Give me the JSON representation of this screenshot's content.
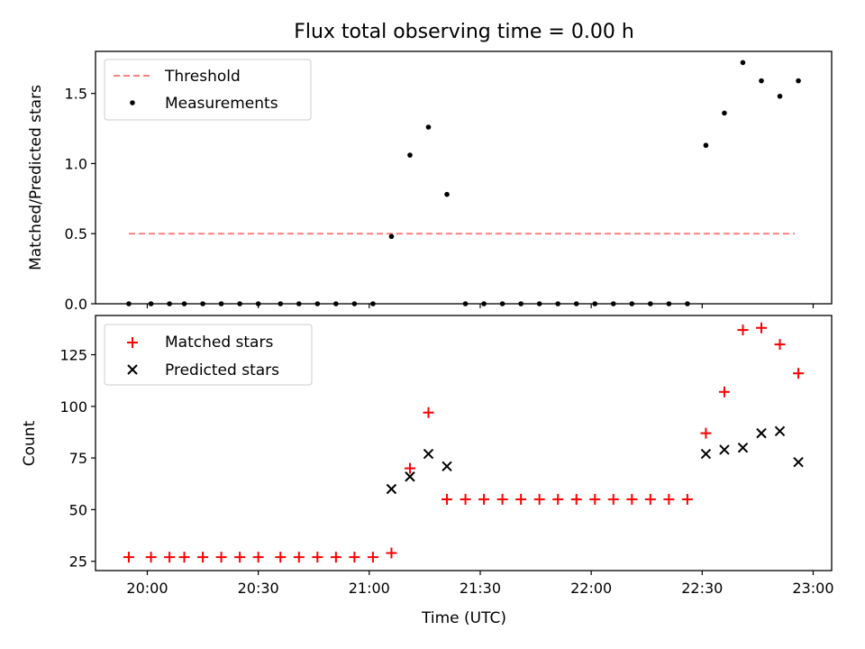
{
  "figure_title": "Flux total observing time = 0.00 h",
  "colors": {
    "threshold": "#ff7f7f",
    "measurement": "#000000",
    "matched": "#ff0000",
    "predicted": "#000000",
    "axes": "#000000"
  },
  "chart_data": [
    {
      "type": "scatter",
      "title": "Flux total observing time = 0.00 h",
      "xlabel": "",
      "ylabel": "Matched/Predicted stars",
      "x_axis_type": "time",
      "xlim": [
        "19:46",
        "23:05"
      ],
      "ylim": [
        0,
        1.8
      ],
      "yticks": [
        0.0,
        0.5,
        1.0,
        1.5
      ],
      "ytick_labels": [
        "0.0",
        "0.5",
        "1.0",
        "1.5"
      ],
      "xticks": [
        "20:00",
        "20:30",
        "21:00",
        "21:30",
        "22:00",
        "22:30",
        "23:00"
      ],
      "grid": false,
      "legend_position": "upper left",
      "series": [
        {
          "name": "Threshold",
          "kind": "line",
          "style": "dashed",
          "color": "#ff7f7f",
          "x": [
            "19:55",
            "22:55"
          ],
          "y": [
            0.5,
            0.5
          ]
        },
        {
          "name": "Measurements",
          "kind": "scatter",
          "marker": "dot",
          "color": "#000000",
          "x": [
            "19:55",
            "20:01",
            "20:06",
            "20:10",
            "20:15",
            "20:20",
            "20:25",
            "20:30",
            "20:36",
            "20:41",
            "20:46",
            "20:51",
            "20:56",
            "21:01",
            "21:06",
            "21:11",
            "21:16",
            "21:21",
            "21:26",
            "21:31",
            "21:36",
            "21:41",
            "21:46",
            "21:51",
            "21:56",
            "22:01",
            "22:06",
            "22:11",
            "22:16",
            "22:21",
            "22:26",
            "22:31",
            "22:36",
            "22:41",
            "22:46",
            "22:51",
            "22:56"
          ],
          "y": [
            0,
            0,
            0,
            0,
            0,
            0,
            0,
            0,
            0,
            0,
            0,
            0,
            0,
            0,
            0.48,
            1.06,
            1.26,
            0.78,
            0,
            0,
            0,
            0,
            0,
            0,
            0,
            0,
            0,
            0,
            0,
            0,
            0,
            1.13,
            1.36,
            1.72,
            1.59,
            1.48,
            1.59
          ]
        }
      ]
    },
    {
      "type": "scatter",
      "title": "",
      "xlabel": "Time (UTC)",
      "ylabel": "Count",
      "x_axis_type": "time",
      "xlim": [
        "19:46",
        "23:05"
      ],
      "ylim": [
        20.5,
        144
      ],
      "yticks": [
        25,
        50,
        75,
        100,
        125
      ],
      "ytick_labels": [
        "25",
        "50",
        "75",
        "100",
        "125"
      ],
      "xticks": [
        "20:00",
        "20:30",
        "21:00",
        "21:30",
        "22:00",
        "22:30",
        "23:00"
      ],
      "xtick_labels": [
        "20:00",
        "20:30",
        "21:00",
        "21:30",
        "22:00",
        "22:30",
        "23:00"
      ],
      "grid": false,
      "legend_position": "upper left",
      "series": [
        {
          "name": "Matched stars",
          "kind": "scatter",
          "marker": "plus",
          "color": "#ff0000",
          "x": [
            "19:55",
            "20:01",
            "20:06",
            "20:10",
            "20:15",
            "20:20",
            "20:25",
            "20:30",
            "20:36",
            "20:41",
            "20:46",
            "20:51",
            "20:56",
            "21:01",
            "21:06",
            "21:11",
            "21:16",
            "21:21",
            "21:26",
            "21:31",
            "21:36",
            "21:41",
            "21:46",
            "21:51",
            "21:56",
            "22:01",
            "22:06",
            "22:11",
            "22:16",
            "22:21",
            "22:26",
            "22:31",
            "22:36",
            "22:41",
            "22:46",
            "22:51",
            "22:56"
          ],
          "y": [
            27,
            27,
            27,
            27,
            27,
            27,
            27,
            27,
            27,
            27,
            27,
            27,
            27,
            27,
            29,
            70,
            97,
            55,
            55,
            55,
            55,
            55,
            55,
            55,
            55,
            55,
            55,
            55,
            55,
            55,
            55,
            87,
            107,
            137,
            138,
            130,
            116
          ]
        },
        {
          "name": "Predicted stars",
          "kind": "scatter",
          "marker": "x",
          "color": "#000000",
          "x": [
            "21:06",
            "21:11",
            "21:16",
            "21:21",
            "22:31",
            "22:36",
            "22:41",
            "22:46",
            "22:51",
            "22:56"
          ],
          "y": [
            60,
            66,
            77,
            71,
            77,
            79,
            80,
            87,
            88,
            73
          ]
        }
      ]
    }
  ]
}
